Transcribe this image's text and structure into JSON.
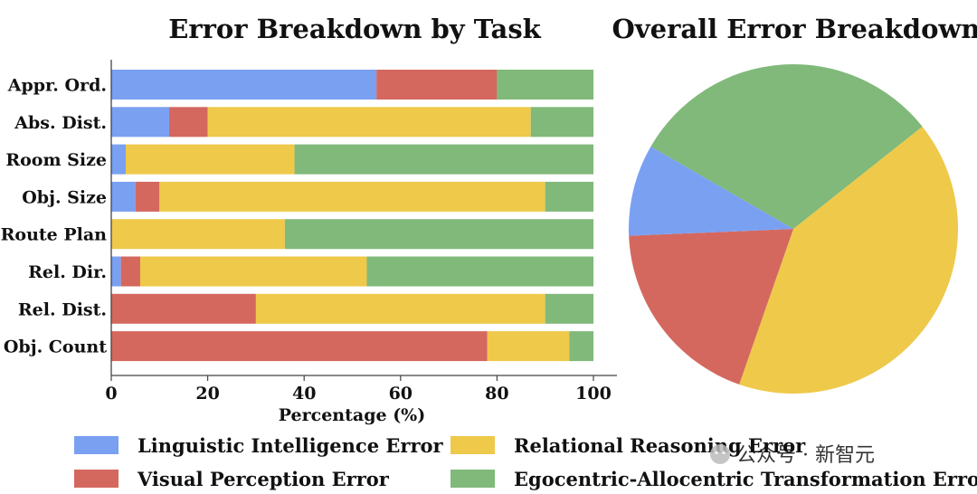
{
  "colors": {
    "linguistic": "#7aa0f2",
    "visual": "#d4685f",
    "relational": "#eec94a",
    "egocentric": "#80b97a"
  },
  "chart_data": [
    {
      "type": "bar",
      "orientation": "horizontal",
      "stacked": true,
      "title": "Error Breakdown by Task",
      "xlabel": "Percentage (%)",
      "ylabel": "",
      "xlim": [
        0,
        100
      ],
      "xticks": [
        "0",
        "20",
        "40",
        "60",
        "80",
        "100"
      ],
      "categories": [
        "Appr. Ord.",
        "Abs. Dist.",
        "Room Size",
        "Obj. Size",
        "Route Plan",
        "Rel. Dir.",
        "Rel. Dist.",
        "Obj. Count"
      ],
      "series": [
        {
          "name": "Linguistic Intelligence Error",
          "key": "linguistic",
          "values": [
            55,
            12,
            3,
            5,
            0,
            2,
            0,
            0
          ]
        },
        {
          "name": "Visual Perception Error",
          "key": "visual",
          "values": [
            25,
            8,
            0,
            5,
            0,
            4,
            30,
            78
          ]
        },
        {
          "name": "Relational Reasoning Error",
          "key": "relational",
          "values": [
            0,
            67,
            35,
            80,
            36,
            47,
            60,
            17
          ]
        },
        {
          "name": "Egocentric-Allocentric Transformation Error",
          "key": "egocentric",
          "values": [
            20,
            13,
            62,
            10,
            64,
            47,
            10,
            5
          ]
        }
      ]
    },
    {
      "type": "pie",
      "title": "Overall Error Breakdown",
      "slices": [
        {
          "name": "Egocentric-Allocentric Transformation Error",
          "key": "egocentric",
          "value": 31
        },
        {
          "name": "Relational Reasoning Error",
          "key": "relational",
          "value": 41
        },
        {
          "name": "Visual Perception Error",
          "key": "visual",
          "value": 19
        },
        {
          "name": "Linguistic Intelligence Error",
          "key": "linguistic",
          "value": 9
        }
      ]
    }
  ],
  "legend": [
    {
      "label": "Linguistic Intelligence Error",
      "key": "linguistic"
    },
    {
      "label": "Visual Perception Error",
      "key": "visual"
    },
    {
      "label": "Relational Reasoning Error",
      "key": "relational"
    },
    {
      "label": "Egocentric-Allocentric Transformation Error",
      "key": "egocentric"
    }
  ],
  "watermark": "公众号 · 新智元"
}
